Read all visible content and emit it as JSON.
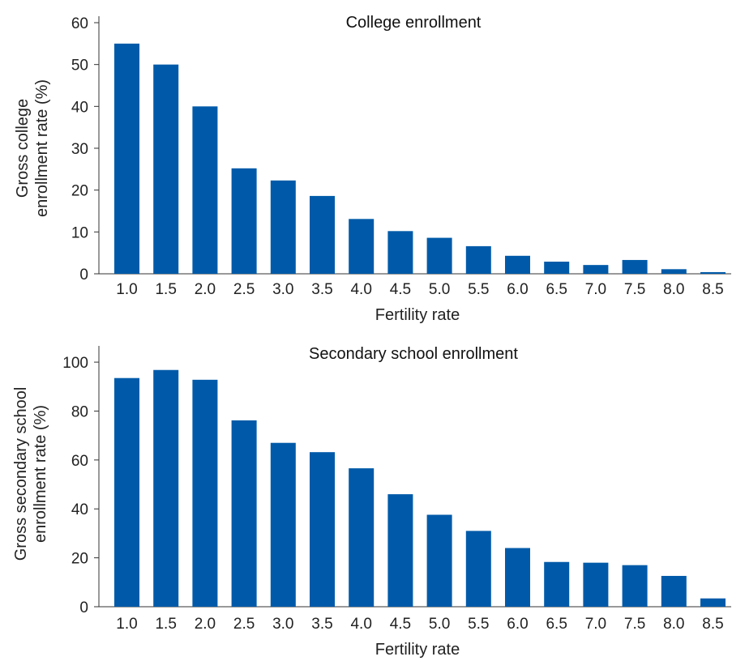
{
  "chart_data": [
    {
      "type": "bar",
      "title": "College enrollment",
      "xlabel": "Fertility rate",
      "ylabel_lines": [
        "Gross college",
        "enrollment rate (%)"
      ],
      "categories": [
        "1.0",
        "1.5",
        "2.0",
        "2.5",
        "3.0",
        "3.5",
        "4.0",
        "4.5",
        "5.0",
        "5.5",
        "6.0",
        "6.5",
        "7.0",
        "7.5",
        "8.0",
        "8.5"
      ],
      "values": [
        55,
        50,
        40,
        25.2,
        22.3,
        18.6,
        13.1,
        10.2,
        8.6,
        6.6,
        4.3,
        2.9,
        2.1,
        3.3,
        1.1,
        0.4
      ],
      "ylim": [
        0,
        60
      ],
      "yticks": [
        "0",
        "10",
        "20",
        "30",
        "40",
        "50",
        "60"
      ],
      "color": "#005aa9"
    },
    {
      "type": "bar",
      "title": "Secondary school enrollment",
      "xlabel": "Fertility rate",
      "ylabel_lines": [
        "Gross secondary school",
        "enrollment rate (%)"
      ],
      "categories": [
        "1.0",
        "1.5",
        "2.0",
        "2.5",
        "3.0",
        "3.5",
        "4.0",
        "4.5",
        "5.0",
        "5.5",
        "6.0",
        "6.5",
        "7.0",
        "7.5",
        "8.0",
        "8.5"
      ],
      "values": [
        93.5,
        96.8,
        92.8,
        76.2,
        67,
        63.2,
        56.6,
        46,
        37.6,
        31,
        24,
        18.3,
        18,
        17,
        12.6,
        3.4
      ],
      "ylim": [
        0,
        104
      ],
      "yticks": [
        "0",
        "20",
        "40",
        "60",
        "80",
        "100"
      ],
      "color": "#005aa9"
    }
  ]
}
